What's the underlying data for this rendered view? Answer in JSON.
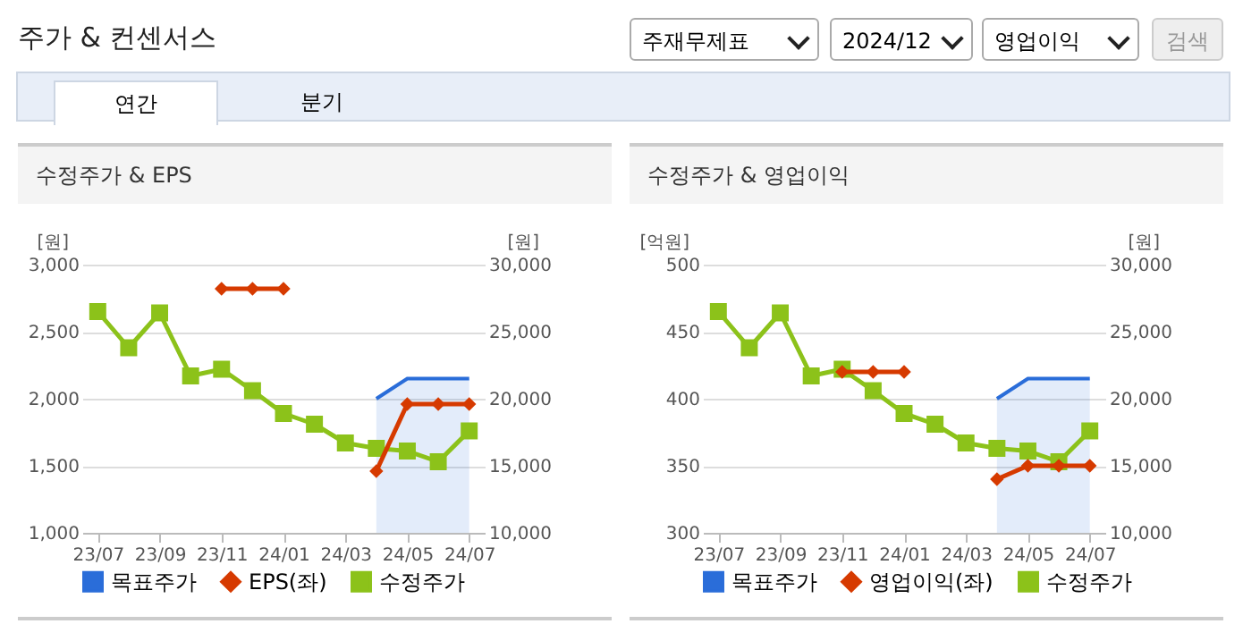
{
  "chart_data": [
    {
      "type": "other",
      "title": "주가 & 컨센서스",
      "annotations": [
        "주재무제표",
        "2024/12",
        "영업이익",
        "검색",
        "연간",
        "분기"
      ]
    },
    {
      "type": "line",
      "title": "수정주가 & EPS",
      "categories": [
        "23/07",
        null,
        "23/09",
        null,
        "23/11",
        null,
        "24/01",
        null,
        "24/03",
        null,
        "24/05",
        null,
        "24/07"
      ],
      "ylabel": "[원]",
      "y2label": "[원]",
      "ylim": [
        1000,
        3000
      ],
      "yticks": [
        {
          "value": 1000,
          "label": "1,000"
        },
        {
          "value": 1500,
          "label": "1,500"
        },
        {
          "value": 2000,
          "label": "2,000"
        },
        {
          "value": 2500,
          "label": "2,500"
        },
        {
          "value": 3000,
          "label": "3,000"
        }
      ],
      "y2lim": [
        10000,
        30000
      ],
      "y2ticks": [
        {
          "value": 10000,
          "label": "10,000"
        },
        {
          "value": 15000,
          "label": "15,000"
        },
        {
          "value": 20000,
          "label": "20,000"
        },
        {
          "value": 25000,
          "label": "25,000"
        },
        {
          "value": 30000,
          "label": "30,000"
        }
      ],
      "grid": "y",
      "legend": "bottom",
      "series": [
        {
          "name": "목표주가",
          "type": "area",
          "axis": "y2",
          "color": "#2a6dd9",
          "values": [
            null,
            null,
            null,
            null,
            null,
            null,
            null,
            null,
            null,
            20000,
            21500,
            21500,
            21500
          ]
        },
        {
          "name": "EPS(좌)",
          "type": "line",
          "marker": "diamond",
          "color": "#d63a00",
          "values": [
            null,
            null,
            null,
            null,
            2820,
            2820,
            2820,
            null,
            null,
            1460,
            1960,
            1960,
            1960
          ]
        },
        {
          "name": "수정주가",
          "type": "line",
          "axis": "y2",
          "marker": "square",
          "color": "#8cc21a",
          "values": [
            26500,
            23800,
            26400,
            21700,
            22200,
            20600,
            18900,
            18100,
            16700,
            16300,
            16100,
            15300,
            17600
          ]
        }
      ]
    },
    {
      "type": "line",
      "title": "수정주가 & 영업이익",
      "categories": [
        "23/07",
        null,
        "23/09",
        null,
        "23/11",
        null,
        "24/01",
        null,
        "24/03",
        null,
        "24/05",
        null,
        "24/07"
      ],
      "ylabel": "[억원]",
      "y2label": "[원]",
      "ylim": [
        300,
        500
      ],
      "yticks": [
        300,
        350,
        400,
        450,
        500
      ],
      "y2lim": [
        10000,
        30000
      ],
      "y2ticks": [
        {
          "value": 10000,
          "label": "10,000"
        },
        {
          "value": 15000,
          "label": "15,000"
        },
        {
          "value": 20000,
          "label": "20,000"
        },
        {
          "value": 25000,
          "label": "25,000"
        },
        {
          "value": 30000,
          "label": "30,000"
        }
      ],
      "grid": "y",
      "legend": "bottom",
      "series": [
        {
          "name": "목표주가",
          "type": "area",
          "axis": "y2",
          "color": "#2a6dd9",
          "values": [
            null,
            null,
            null,
            null,
            null,
            null,
            null,
            null,
            null,
            20000,
            21500,
            21500,
            21500
          ]
        },
        {
          "name": "영업이익(좌)",
          "type": "line",
          "marker": "diamond",
          "color": "#d63a00",
          "values": [
            null,
            null,
            null,
            null,
            420,
            420,
            420,
            null,
            null,
            340,
            350,
            350,
            350
          ]
        },
        {
          "name": "수정주가",
          "type": "line",
          "axis": "y2",
          "marker": "square",
          "color": "#8cc21a",
          "values": [
            26500,
            23800,
            26400,
            21700,
            22200,
            20600,
            18900,
            18100,
            16700,
            16300,
            16100,
            15300,
            17600
          ]
        }
      ]
    }
  ]
}
